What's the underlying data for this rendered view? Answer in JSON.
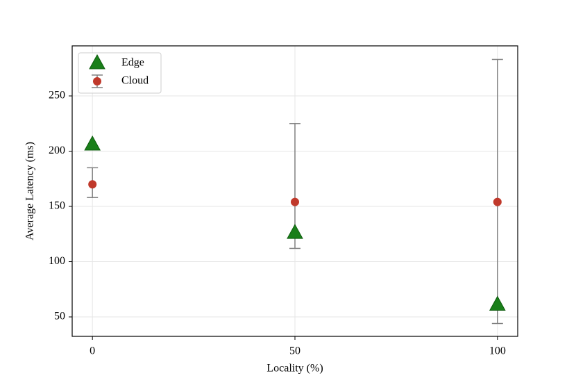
{
  "chart_data": {
    "type": "scatter",
    "xlabel": "Locality (%)",
    "ylabel": "Average Latency (ms)",
    "x": [
      0,
      50,
      100
    ],
    "series": [
      {
        "name": "Edge",
        "color": "#1a7f1a",
        "marker": "triangle",
        "values": [
          206,
          126,
          61
        ]
      },
      {
        "name": "Cloud",
        "color": "#c0392b",
        "marker": "circle",
        "values": [
          170,
          154,
          154
        ],
        "err_lower": [
          12,
          42,
          110
        ],
        "err_upper": [
          15,
          71,
          129
        ],
        "err_color": "#808080"
      }
    ],
    "xlim": [
      -5,
      105
    ],
    "ylim": [
      32.4,
      295.3
    ],
    "xticks": [
      0,
      50,
      100
    ],
    "yticks": [
      50,
      100,
      150,
      200,
      250
    ],
    "grid": true,
    "legend": "upper left"
  }
}
